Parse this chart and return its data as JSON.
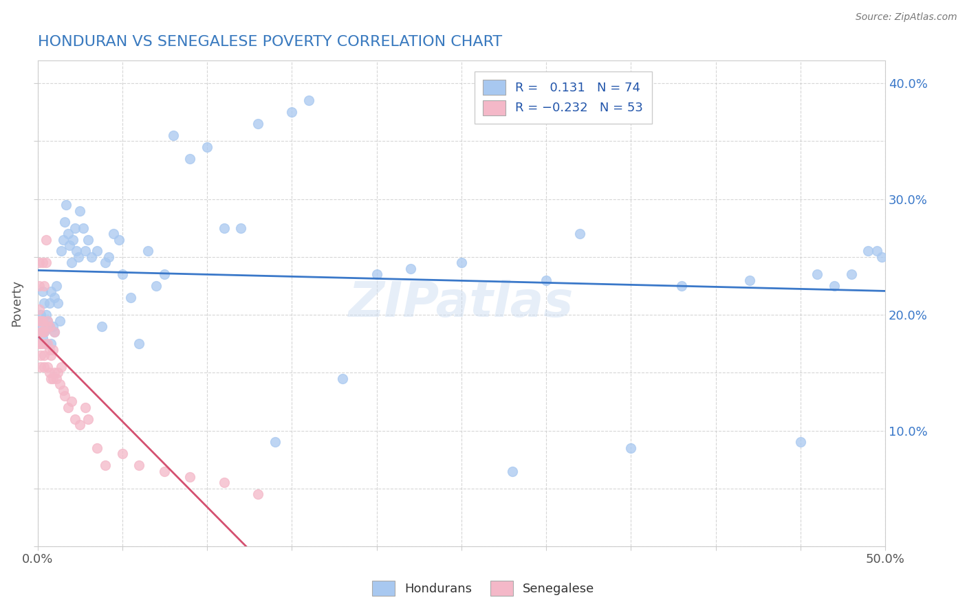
{
  "title": "HONDURAN VS SENEGALESE POVERTY CORRELATION CHART",
  "source": "Source: ZipAtlas.com",
  "ylabel": "Poverty",
  "x_min": 0.0,
  "x_max": 0.5,
  "y_min": 0.0,
  "y_max": 0.42,
  "blue_R": 0.131,
  "blue_N": 74,
  "pink_R": -0.232,
  "pink_N": 53,
  "blue_color": "#a8c8f0",
  "pink_color": "#f4b8c8",
  "blue_line_color": "#3a78c9",
  "pink_line_color": "#d45070",
  "pink_dash_color": "#e8a0b0",
  "watermark": "ZIPatlas",
  "title_color": "#3a7abf",
  "legend_R_color": "#2255aa",
  "hondurans_x": [
    0.001,
    0.002,
    0.002,
    0.003,
    0.003,
    0.004,
    0.004,
    0.005,
    0.005,
    0.006,
    0.007,
    0.007,
    0.008,
    0.008,
    0.009,
    0.01,
    0.01,
    0.011,
    0.012,
    0.013,
    0.014,
    0.015,
    0.016,
    0.017,
    0.018,
    0.019,
    0.02,
    0.021,
    0.022,
    0.023,
    0.024,
    0.025,
    0.027,
    0.028,
    0.03,
    0.032,
    0.035,
    0.038,
    0.04,
    0.042,
    0.045,
    0.048,
    0.05,
    0.055,
    0.06,
    0.065,
    0.07,
    0.075,
    0.08,
    0.09,
    0.1,
    0.11,
    0.12,
    0.13,
    0.14,
    0.15,
    0.16,
    0.18,
    0.2,
    0.22,
    0.25,
    0.28,
    0.3,
    0.32,
    0.35,
    0.38,
    0.42,
    0.45,
    0.46,
    0.47,
    0.48,
    0.49,
    0.495,
    0.498
  ],
  "hondurans_y": [
    0.195,
    0.2,
    0.19,
    0.22,
    0.18,
    0.21,
    0.185,
    0.175,
    0.2,
    0.195,
    0.21,
    0.19,
    0.22,
    0.175,
    0.19,
    0.215,
    0.185,
    0.225,
    0.21,
    0.195,
    0.255,
    0.265,
    0.28,
    0.295,
    0.27,
    0.26,
    0.245,
    0.265,
    0.275,
    0.255,
    0.25,
    0.29,
    0.275,
    0.255,
    0.265,
    0.25,
    0.255,
    0.19,
    0.245,
    0.25,
    0.27,
    0.265,
    0.235,
    0.215,
    0.175,
    0.255,
    0.225,
    0.235,
    0.355,
    0.335,
    0.345,
    0.275,
    0.275,
    0.365,
    0.09,
    0.375,
    0.385,
    0.145,
    0.235,
    0.24,
    0.245,
    0.065,
    0.23,
    0.27,
    0.085,
    0.225,
    0.23,
    0.09,
    0.235,
    0.225,
    0.235,
    0.255,
    0.255,
    0.25
  ],
  "senegalese_x": [
    0.001,
    0.001,
    0.001,
    0.001,
    0.001,
    0.002,
    0.002,
    0.002,
    0.002,
    0.002,
    0.003,
    0.003,
    0.003,
    0.003,
    0.004,
    0.004,
    0.004,
    0.004,
    0.005,
    0.005,
    0.005,
    0.006,
    0.006,
    0.006,
    0.007,
    0.007,
    0.007,
    0.008,
    0.008,
    0.009,
    0.009,
    0.01,
    0.01,
    0.011,
    0.012,
    0.013,
    0.014,
    0.015,
    0.016,
    0.018,
    0.02,
    0.022,
    0.025,
    0.028,
    0.03,
    0.035,
    0.04,
    0.05,
    0.06,
    0.075,
    0.09,
    0.11,
    0.13
  ],
  "senegalese_y": [
    0.245,
    0.225,
    0.205,
    0.195,
    0.175,
    0.195,
    0.185,
    0.175,
    0.165,
    0.155,
    0.245,
    0.195,
    0.185,
    0.175,
    0.225,
    0.185,
    0.165,
    0.155,
    0.265,
    0.245,
    0.19,
    0.195,
    0.175,
    0.155,
    0.19,
    0.17,
    0.15,
    0.165,
    0.145,
    0.17,
    0.145,
    0.185,
    0.15,
    0.145,
    0.15,
    0.14,
    0.155,
    0.135,
    0.13,
    0.12,
    0.125,
    0.11,
    0.105,
    0.12,
    0.11,
    0.085,
    0.07,
    0.08,
    0.07,
    0.065,
    0.06,
    0.055,
    0.045
  ]
}
